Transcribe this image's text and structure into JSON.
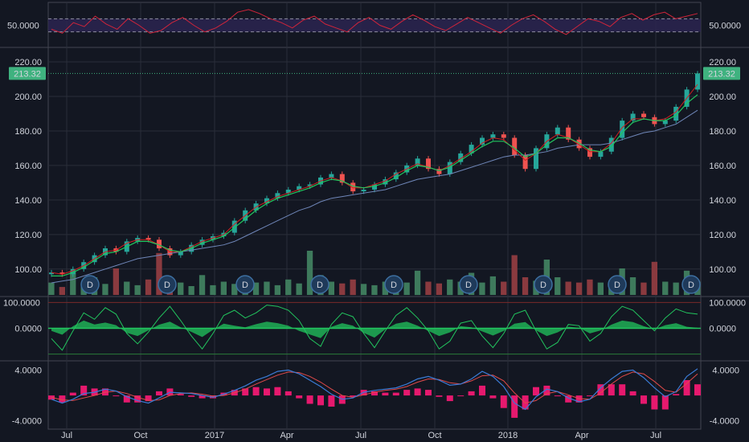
{
  "colors": {
    "background": "#131722",
    "grid": "#2a2e39",
    "separator": "#434651",
    "up": "#26a69a",
    "down": "#ef5350",
    "volume_up": "#3e7a5c",
    "volume_down": "#8a3a3f",
    "ma_fast": "#22c55e",
    "ma_mid": "#d02020",
    "ma_slow": "#6f86b8",
    "rsi": "#d0243a",
    "rsi_band": "#2c2450",
    "oscillator": "#22c55e",
    "macd": "#3a7bd5",
    "signal": "#e04a4a",
    "histogram": "#e6196e",
    "last_price_badge": "#3fb27f",
    "event_marker": "#1f3a5a"
  },
  "chart_data": [
    {
      "type": "line",
      "panel": "rsi",
      "ytick_labels": [
        "50.0000"
      ],
      "ylim": [
        35,
        65
      ],
      "bands": [
        45,
        55
      ],
      "series": [
        {
          "values": [
            47,
            44,
            52,
            49,
            57,
            51,
            47,
            55,
            50,
            44,
            46,
            52,
            56,
            50,
            45,
            48,
            53,
            60,
            62,
            59,
            55,
            52,
            48,
            54,
            57,
            51,
            48,
            45,
            52,
            56,
            50,
            47,
            53,
            58,
            54,
            49,
            46,
            51,
            56,
            52,
            48,
            44,
            50,
            55,
            58,
            53,
            47,
            43,
            49,
            55,
            53,
            49,
            56,
            59,
            54,
            58,
            60,
            55,
            57,
            59
          ]
        }
      ]
    },
    {
      "type": "line",
      "panel": "price",
      "ytick_labels": [
        "100.00",
        "120.00",
        "140.00",
        "160.00",
        "180.00",
        "200.00",
        "220.00"
      ],
      "ylim": [
        85,
        227
      ],
      "last_price": 213.32,
      "last_price_label": "213.32",
      "x_labels": [
        "Jul",
        "Oct",
        "2017",
        "Apr",
        "Jul",
        "Oct",
        "2018",
        "Apr",
        "Jul"
      ],
      "event_label": "D",
      "series": [
        {
          "role": "close",
          "values": [
            98,
            97,
            100,
            104,
            108,
            112,
            110,
            116,
            118,
            117,
            112,
            108,
            110,
            114,
            117,
            119,
            121,
            128,
            134,
            138,
            141,
            144,
            146,
            148,
            149,
            153,
            155,
            150,
            145,
            146,
            149,
            152,
            156,
            160,
            164,
            158,
            155,
            162,
            167,
            172,
            176,
            178,
            176,
            166,
            158,
            170,
            178,
            182,
            175,
            170,
            165,
            168,
            176,
            186,
            190,
            188,
            184,
            186,
            194,
            204,
            213.3
          ]
        },
        {
          "role": "ma_fast",
          "values": [
            96,
            96,
            98,
            101,
            105,
            109,
            110,
            113,
            116,
            116,
            114,
            111,
            110,
            112,
            115,
            117,
            119,
            124,
            129,
            134,
            138,
            141,
            143,
            145,
            147,
            150,
            152,
            151,
            148,
            147,
            148,
            150,
            153,
            157,
            160,
            159,
            157,
            159,
            163,
            167,
            171,
            174,
            174,
            170,
            165,
            167,
            172,
            176,
            176,
            173,
            169,
            168,
            171,
            179,
            185,
            187,
            186,
            186,
            189,
            196,
            201
          ]
        },
        {
          "role": "ma_mid",
          "values": [
            98,
            97,
            99,
            102,
            106,
            110,
            111,
            115,
            117,
            117,
            114,
            110,
            110,
            113,
            116,
            118,
            120,
            126,
            131,
            136,
            139,
            142,
            144,
            146,
            148,
            151,
            153,
            151,
            147,
            147,
            149,
            151,
            155,
            158,
            161,
            159,
            157,
            160,
            164,
            168,
            173,
            176,
            175,
            169,
            163,
            167,
            174,
            178,
            176,
            172,
            168,
            168,
            173,
            182,
            187,
            187,
            186,
            187,
            191,
            199,
            207
          ]
        },
        {
          "role": "ma_slow",
          "values": [
            92,
            93,
            94,
            96,
            98,
            100,
            102,
            104,
            106,
            107,
            108,
            109,
            110,
            111,
            112,
            113,
            114,
            116,
            119,
            122,
            125,
            128,
            131,
            134,
            136,
            139,
            141,
            142,
            143,
            144,
            145,
            146,
            148,
            150,
            152,
            153,
            154,
            155,
            157,
            159,
            161,
            163,
            165,
            166,
            166,
            167,
            168,
            170,
            171,
            172,
            172,
            172,
            173,
            175,
            177,
            179,
            180,
            182,
            184,
            188,
            192
          ]
        }
      ],
      "volume": [
        0.28,
        0.18,
        0.55,
        0.22,
        0.4,
        0.25,
        0.6,
        0.3,
        0.22,
        0.35,
        0.95,
        0.4,
        0.28,
        0.2,
        0.45,
        0.22,
        0.3,
        0.25,
        0.35,
        0.28,
        0.3,
        0.22,
        0.35,
        0.26,
        1.0,
        0.45,
        0.3,
        0.26,
        0.35,
        0.25,
        0.22,
        0.3,
        0.4,
        0.28,
        0.55,
        0.3,
        0.26,
        0.35,
        0.3,
        0.5,
        0.28,
        0.42,
        0.3,
        0.9,
        0.4,
        0.32,
        0.8,
        0.4,
        0.3,
        0.28,
        0.35,
        0.28,
        0.32,
        0.6,
        0.4,
        0.28,
        0.75,
        0.3,
        0.28,
        0.55,
        0.3
      ]
    },
    {
      "type": "area",
      "panel": "oscillator",
      "ytick_labels": [
        "100.0000",
        "0.0000"
      ],
      "ylim": [
        -120,
        120
      ],
      "series": [
        {
          "role": "area",
          "values": [
            -10,
            -25,
            8,
            30,
            15,
            22,
            12,
            -18,
            -30,
            -8,
            14,
            26,
            4,
            -14,
            -34,
            -6,
            18,
            10,
            4,
            16,
            26,
            20,
            10,
            -10,
            -24,
            -38,
            6,
            20,
            10,
            -18,
            -36,
            -4,
            18,
            26,
            10,
            -10,
            -30,
            -16,
            8,
            4,
            -12,
            -28,
            -10,
            18,
            24,
            -8,
            -30,
            -16,
            6,
            2,
            -20,
            -8,
            14,
            30,
            24,
            8,
            -4,
            12,
            20,
            6,
            2
          ]
        },
        {
          "role": "line",
          "values": [
            -40,
            -85,
            -10,
            60,
            35,
            80,
            55,
            -20,
            -60,
            -15,
            40,
            85,
            30,
            -30,
            -80,
            -20,
            50,
            70,
            40,
            60,
            90,
            85,
            70,
            30,
            -40,
            -70,
            15,
            60,
            45,
            -20,
            -75,
            -10,
            50,
            80,
            40,
            -10,
            -80,
            -50,
            20,
            30,
            -30,
            -75,
            -20,
            55,
            70,
            -10,
            -80,
            -55,
            15,
            10,
            -50,
            -20,
            45,
            85,
            70,
            30,
            -10,
            40,
            75,
            60,
            55
          ]
        }
      ]
    },
    {
      "type": "line",
      "panel": "macd",
      "ytick_labels": [
        "4.0000",
        "-4.0000"
      ],
      "ylim": [
        -4.8,
        5.2
      ],
      "series": [
        {
          "role": "macd",
          "values": [
            -0.6,
            -1.2,
            -0.6,
            0.3,
            0.5,
            1.0,
            0.7,
            -0.2,
            -0.8,
            -1.2,
            -0.4,
            0.5,
            0.4,
            0.3,
            0.0,
            -0.3,
            0.2,
            0.8,
            1.5,
            2.4,
            3.0,
            3.8,
            4.0,
            3.4,
            2.4,
            1.4,
            0.2,
            -0.6,
            -0.4,
            0.5,
            0.8,
            1.0,
            1.2,
            1.8,
            2.6,
            3.0,
            2.4,
            1.6,
            1.8,
            2.6,
            3.8,
            3.0,
            1.4,
            -1.2,
            -2.2,
            -0.2,
            1.0,
            0.6,
            -0.4,
            -1.0,
            -0.6,
            1.2,
            2.6,
            3.8,
            4.0,
            2.8,
            1.2,
            -0.2,
            0.6,
            3.0,
            4.2
          ]
        },
        {
          "role": "signal",
          "values": [
            -0.3,
            -0.7,
            -0.8,
            -0.4,
            0.0,
            0.5,
            0.7,
            0.3,
            -0.3,
            -0.8,
            -0.7,
            0.0,
            0.3,
            0.4,
            0.2,
            -0.1,
            0.0,
            0.4,
            1.0,
            1.8,
            2.5,
            3.2,
            3.7,
            3.6,
            3.0,
            2.1,
            1.0,
            0.0,
            -0.3,
            0.1,
            0.5,
            0.8,
            1.0,
            1.4,
            2.1,
            2.6,
            2.5,
            2.0,
            1.8,
            2.3,
            3.1,
            3.2,
            2.3,
            0.4,
            -1.2,
            -0.8,
            0.3,
            0.6,
            0.1,
            -0.5,
            -0.6,
            0.4,
            1.8,
            3.0,
            3.7,
            3.4,
            2.2,
            0.8,
            0.5,
            1.9,
            3.4
          ]
        }
      ]
    }
  ]
}
